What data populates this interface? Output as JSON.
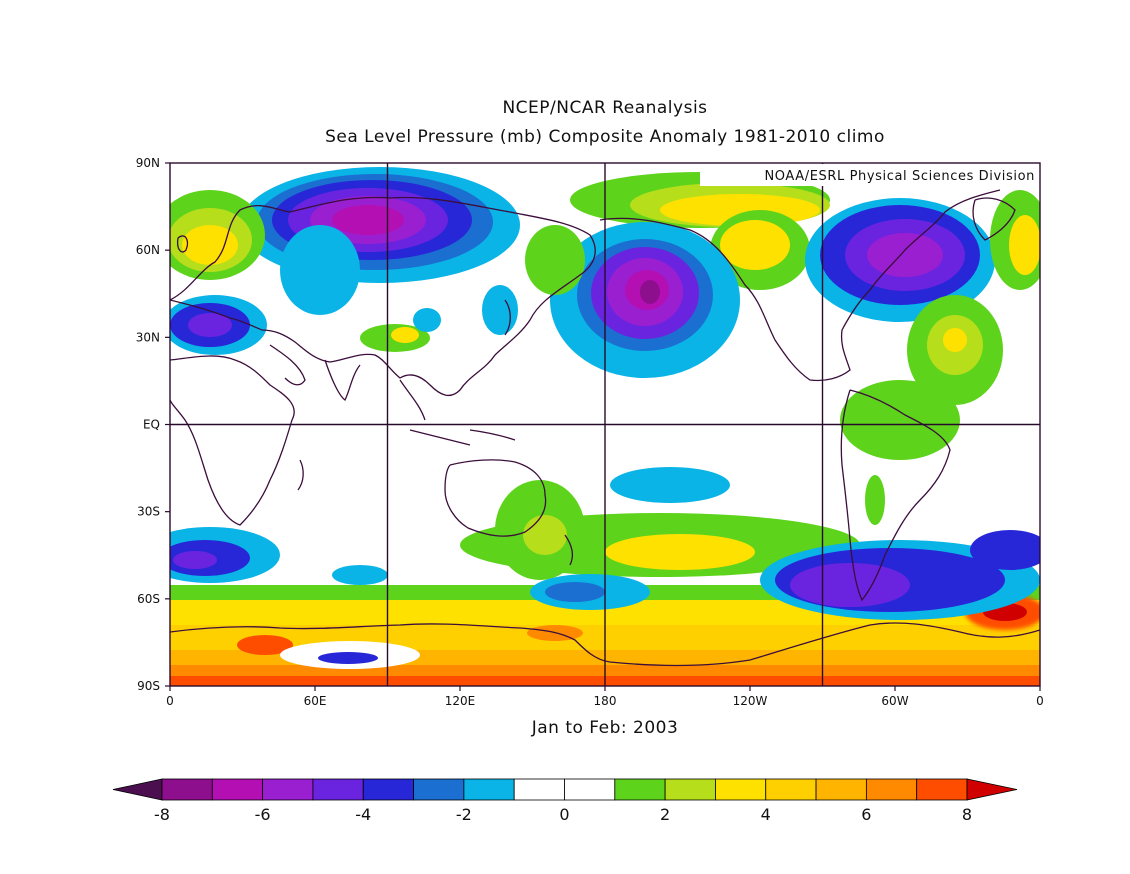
{
  "title": "NCEP/NCAR Reanalysis",
  "subtitle": "Sea Level Pressure (mb) Composite Anomaly 1981-2010 climo",
  "credit": "NOAA/ESRL Physical Sciences Division",
  "period": "Jan to Feb: 2003",
  "lat_ticks": [
    "90N",
    "60N",
    "30N",
    "EQ",
    "30S",
    "60S",
    "90S"
  ],
  "lon_ticks": [
    "0",
    "60E",
    "120E",
    "180",
    "120W",
    "60W",
    "0"
  ],
  "colorbar": {
    "labels": [
      "-8",
      "-6",
      "-4",
      "-2",
      "0",
      "2",
      "4",
      "6",
      "8"
    ],
    "colors": [
      "#4b0f4f",
      "#8e0f8e",
      "#b30fb3",
      "#9a1fd0",
      "#6a24e0",
      "#2727d8",
      "#1b6fd0",
      "#0ab4e6",
      "#ffffff",
      "#ffffff",
      "#5ed31c",
      "#b7de1b",
      "#ffe100",
      "#ffd000",
      "#ffb400",
      "#ff8a00",
      "#ff4d00",
      "#d00000"
    ]
  },
  "colors": {
    "coast": "#3b0e3b",
    "grid": "#2a0a2a"
  }
}
